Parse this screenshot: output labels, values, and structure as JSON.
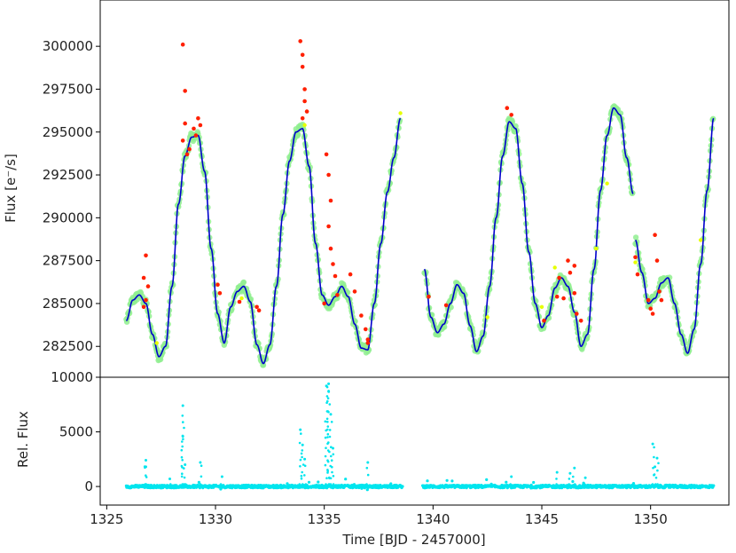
{
  "chart_data": [
    {
      "type": "scatter",
      "panel": "top",
      "ylabel": "Flux [e$^-$/s]",
      "ylabel_display": "Flux [e⁻/s]",
      "xlabel": "",
      "xlim": [
        1324.7,
        1353.6
      ],
      "ylim": [
        280700,
        302700
      ],
      "yticks": [
        282500,
        285000,
        287500,
        290000,
        292500,
        295000,
        297500,
        300000
      ],
      "ytick_labels": [
        "282500",
        "285000",
        "287500",
        "290000",
        "292500",
        "295000",
        "297500",
        "300000"
      ],
      "grid": false,
      "colors": {
        "smooth": "#0000cc",
        "data": "#90ee90",
        "outliers": "#ff2000",
        "highlight": "#e6ff00"
      },
      "series": [
        {
          "name": "",
          "style": "line",
          "color": "#0000cc",
          "segments": [
            {
              "x": [
                1325.9,
                1326.2,
                1326.5,
                1326.8,
                1327.1,
                1327.4,
                1327.7,
                1328.0,
                1328.3,
                1328.6,
                1328.9,
                1329.2,
                1329.5,
                1329.8,
                1330.1,
                1330.4,
                1330.7,
                1331.0,
                1331.3,
                1331.6,
                1331.9,
                1332.2,
                1332.5,
                1332.8,
                1333.1,
                1333.4,
                1333.7,
                1334.0,
                1334.3,
                1334.6,
                1334.9,
                1335.2,
                1335.5,
                1335.8,
                1336.1,
                1336.4,
                1336.7,
                1337.0,
                1337.3,
                1337.6,
                1337.9,
                1338.2,
                1338.5
              ],
              "y": [
                284000,
                285200,
                285500,
                285000,
                283200,
                281900,
                282500,
                286000,
                290800,
                293600,
                294700,
                294800,
                292700,
                288200,
                284400,
                282700,
                284800,
                285700,
                286000,
                285100,
                282600,
                281500,
                282600,
                286000,
                290200,
                293300,
                295000,
                295200,
                293000,
                288500,
                285500,
                284900,
                285400,
                286000,
                285400,
                283800,
                282400,
                282300,
                285000,
                288500,
                291500,
                293500,
                295800
              ]
            },
            {
              "x": [
                1339.6,
                1339.9,
                1340.2,
                1340.5,
                1340.8,
                1341.1,
                1341.4,
                1341.7,
                1342.0,
                1342.3,
                1342.6,
                1342.9,
                1343.2,
                1343.5,
                1343.8,
                1344.1,
                1344.4,
                1344.7,
                1345.0,
                1345.3,
                1345.6,
                1345.9,
                1346.2,
                1346.5,
                1346.8,
                1347.1,
                1347.4,
                1347.7,
                1348.0,
                1348.3,
                1348.6,
                1348.9,
                1349.2
              ],
              "y": [
                287000,
                284200,
                283300,
                283800,
                285000,
                286100,
                285600,
                283700,
                282200,
                283100,
                286000,
                290000,
                293600,
                295600,
                295200,
                292000,
                288000,
                285000,
                283600,
                284300,
                285900,
                286500,
                286000,
                284500,
                282500,
                283200,
                287000,
                291600,
                294800,
                296400,
                296000,
                293500,
                291400
              ]
            },
            {
              "x": [
                1349.3,
                1349.6,
                1349.9,
                1350.2,
                1350.5,
                1350.8,
                1351.1,
                1351.4,
                1351.7,
                1352.0,
                1352.3,
                1352.6,
                1352.9
              ],
              "y": [
                288700,
                286800,
                285000,
                285300,
                286200,
                286500,
                285000,
                283200,
                282100,
                283500,
                287300,
                291600,
                295800
              ]
            }
          ]
        },
        {
          "name": "",
          "style": "points",
          "color": "#ff2000",
          "x": [
            1326.7,
            1326.8,
            1326.8,
            1326.9,
            1326.7,
            1328.5,
            1328.6,
            1328.6,
            1328.5,
            1328.7,
            1328.8,
            1329.0,
            1329.1,
            1329.2,
            1329.3,
            1330.1,
            1330.2,
            1331.1,
            1331.9,
            1332.0,
            1333.9,
            1334.0,
            1334.0,
            1334.1,
            1334.1,
            1334.2,
            1334.0,
            1335.1,
            1335.2,
            1335.3,
            1335.2,
            1335.3,
            1335.4,
            1335.5,
            1335.6,
            1335.0,
            1336.2,
            1336.4,
            1336.7,
            1336.9,
            1337.0,
            1337.0,
            1339.8,
            1340.6,
            1343.4,
            1343.6,
            1345.1,
            1345.7,
            1345.8,
            1346.0,
            1346.2,
            1346.3,
            1346.5,
            1346.5,
            1346.6,
            1346.8,
            1349.3,
            1349.4,
            1349.9,
            1350.0,
            1350.1,
            1350.2,
            1350.3,
            1350.4,
            1350.5
          ],
          "y": [
            286500,
            287800,
            285200,
            286000,
            284800,
            300100,
            297400,
            295500,
            294500,
            293700,
            294000,
            295200,
            294800,
            295800,
            295400,
            286100,
            285600,
            285100,
            284800,
            284600,
            300300,
            299500,
            298800,
            297500,
            296800,
            296200,
            295800,
            293700,
            292500,
            291000,
            289500,
            288200,
            287300,
            286600,
            285500,
            285000,
            286700,
            285700,
            284300,
            283500,
            282900,
            282700,
            285400,
            284900,
            296400,
            296000,
            284000,
            285400,
            286500,
            285300,
            287500,
            286800,
            285600,
            287200,
            284400,
            284000,
            287700,
            286700,
            285200,
            284700,
            284400,
            289000,
            287500,
            285700,
            285200
          ]
        },
        {
          "name": "",
          "style": "points",
          "color": "#e6ff00",
          "x": [
            1327.3,
            1331.2,
            1334.1,
            1338.5,
            1342.5,
            1345.0,
            1345.6,
            1347.5,
            1348.0,
            1349.3,
            1352.3
          ],
          "y": [
            282700,
            285300,
            295400,
            296100,
            284200,
            284800,
            287100,
            288200,
            292000,
            287400,
            288700
          ]
        }
      ]
    },
    {
      "type": "scatter",
      "panel": "bottom",
      "ylabel": "Rel. Flux",
      "xlabel": "Time [BJD - 2457000]",
      "xlim": [
        1324.7,
        1353.6
      ],
      "ylim": [
        -1700,
        10000
      ],
      "yticks": [
        0,
        5000,
        10000
      ],
      "ytick_labels": [
        "0",
        "5000",
        "10000"
      ],
      "xticks": [
        1325,
        1330,
        1335,
        1340,
        1345,
        1350
      ],
      "xtick_labels": [
        "1325",
        "1330",
        "1335",
        "1340",
        "1345",
        "1350"
      ],
      "grid": false,
      "series": [
        {
          "name": "",
          "style": "points",
          "color": "#00e5ee",
          "gaps": [
            [
              1338.6,
              1339.5
            ]
          ],
          "spikes": {
            "x": [
              1326.8,
              1326.8,
              1327.9,
              1328.5,
              1328.5,
              1328.6,
              1329.3,
              1330.3,
              1333.9,
              1334.0,
              1334.1,
              1335.1,
              1335.2,
              1335.2,
              1335.3,
              1335.4,
              1337.0,
              1343.6,
              1345.7,
              1346.3,
              1346.5,
              1347.0,
              1350.1,
              1350.3,
              1350.2
            ],
            "y": [
              2400,
              1800,
              700,
              7400,
              4600,
              2000,
              2200,
              900,
              5200,
              3800,
              2500,
              9200,
              9400,
              8700,
              6600,
              3500,
              2200,
              900,
              1300,
              1200,
              1700,
              800,
              3900,
              2600,
              1800
            ]
          }
        }
      ]
    }
  ]
}
